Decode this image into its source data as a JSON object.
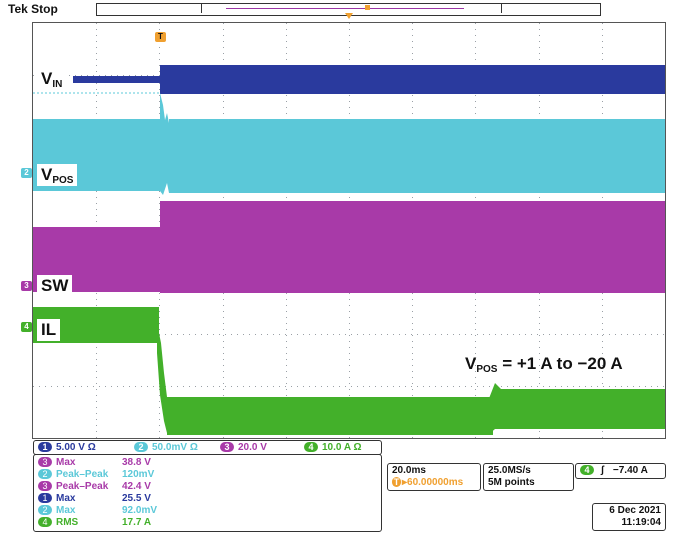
{
  "status": {
    "brand": "Tek",
    "state": "Stop"
  },
  "trace_labels": {
    "vin": {
      "main": "V",
      "sub": "IN"
    },
    "vpos": {
      "main": "V",
      "sub": "POS"
    },
    "sw": "SW",
    "il": "IL"
  },
  "annotation": {
    "prefix": "V",
    "sub": "POS",
    "suffix": " = +1 A to −20 A"
  },
  "channel_markers": {
    "ch2": "2",
    "ch3": "3",
    "ch4": "4"
  },
  "channel_settings": [
    {
      "num": "1",
      "text": "5.00 V",
      "color": "#2a3a9e",
      "extra": "Ω"
    },
    {
      "num": "2",
      "text": "50.0mV",
      "color": "#5bc8d8",
      "extra": "Ω"
    },
    {
      "num": "3",
      "text": "20.0 V",
      "color": "#a83aa8",
      "extra": ""
    },
    {
      "num": "4",
      "text": "10.0 A",
      "color": "#43b02a",
      "extra": "Ω"
    }
  ],
  "measurements": [
    {
      "num": "3",
      "name": "Max",
      "value": "38.8 V",
      "color": "#a83aa8"
    },
    {
      "num": "2",
      "name": "Peak–Peak",
      "value": "120mV",
      "color": "#5bc8d8"
    },
    {
      "num": "3",
      "name": "Peak–Peak",
      "value": "42.4 V",
      "color": "#a83aa8"
    },
    {
      "num": "1",
      "name": "Max",
      "value": "25.5 V",
      "color": "#2a3a9e"
    },
    {
      "num": "2",
      "name": "Max",
      "value": "92.0mV",
      "color": "#5bc8d8"
    },
    {
      "num": "4",
      "name": "RMS",
      "value": "17.7 A",
      "color": "#43b02a"
    }
  ],
  "timebase": {
    "scale": "20.0ms",
    "position": "▸60.00000ms"
  },
  "acquisition": {
    "rate": "25.0MS/s",
    "points": "5M points"
  },
  "trigger": {
    "channel": "4",
    "slope": "ʃ",
    "level": "−7.40 A"
  },
  "datetime": {
    "date": "6 Dec 2021",
    "time": "11:19:04"
  },
  "colors": {
    "ch1": "#2a3a9e",
    "ch2": "#5bc8d8",
    "ch3": "#a83aa8",
    "ch4": "#43b02a",
    "trigger": "#f0a030",
    "grid": "#9aa0a6"
  }
}
